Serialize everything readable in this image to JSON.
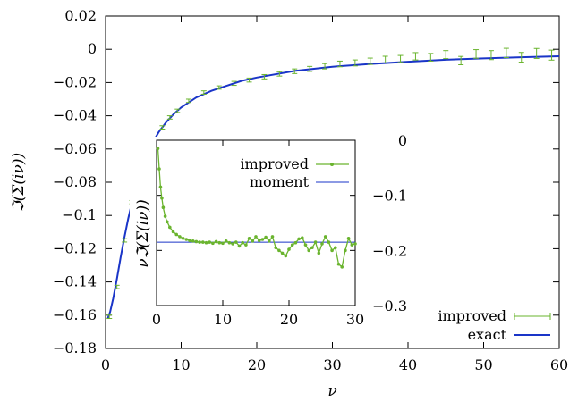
{
  "colors": {
    "improved": "#6ab42e",
    "exact": "#1a35c8",
    "axis": "#000000"
  },
  "chart_data": [
    {
      "type": "line",
      "title": "",
      "xlabel": "ν",
      "ylabel": "ℑ(Σ(iν))",
      "xlim": [
        0,
        60
      ],
      "ylim": [
        -0.18,
        0.02
      ],
      "xticks": [
        0,
        10,
        20,
        30,
        40,
        50,
        60
      ],
      "xtick_labels": [
        "0",
        "10",
        "20",
        "30",
        "40",
        "50",
        "60"
      ],
      "yticks": [
        0.02,
        0,
        -0.02,
        -0.04,
        -0.06,
        -0.08,
        -0.1,
        -0.12,
        -0.14,
        -0.16,
        -0.18
      ],
      "ytick_labels": [
        "0.02",
        "0",
        "−0.02",
        "−0.04",
        "−0.06",
        "−0.08",
        "−0.1",
        "−0.12",
        "−0.14",
        "−0.16",
        "−0.18"
      ],
      "legend_position": "bottom-right",
      "series": [
        {
          "name": "improved",
          "style": "errorbars",
          "x": [
            0.5,
            1.5,
            2.5,
            3.5,
            4.5,
            5.5,
            6.5,
            7.5,
            8.5,
            9.5,
            11,
            13,
            15,
            17,
            19,
            21,
            23,
            25,
            27,
            29,
            31,
            33,
            35,
            37,
            39,
            41,
            43,
            45,
            47,
            49,
            51,
            53,
            55,
            57,
            59
          ],
          "y": [
            -0.161,
            -0.143,
            -0.115,
            -0.092,
            -0.075,
            -0.063,
            -0.054,
            -0.047,
            -0.041,
            -0.037,
            -0.031,
            -0.026,
            -0.023,
            -0.0205,
            -0.0185,
            -0.0165,
            -0.0148,
            -0.0132,
            -0.0118,
            -0.0102,
            -0.0088,
            -0.0082,
            -0.0072,
            -0.0062,
            -0.0058,
            -0.0042,
            -0.0048,
            -0.0032,
            -0.0068,
            -0.0028,
            -0.0035,
            -0.0022,
            -0.0048,
            -0.0025,
            -0.0035
          ],
          "err": [
            0.001,
            0.001,
            0.001,
            0.001,
            0.001,
            0.001,
            0.001,
            0.001,
            0.001,
            0.001,
            0.001,
            0.001,
            0.001,
            0.0012,
            0.0012,
            0.0013,
            0.0013,
            0.0014,
            0.0015,
            0.0016,
            0.0017,
            0.0018,
            0.0019,
            0.002,
            0.0021,
            0.0022,
            0.0023,
            0.0024,
            0.0025,
            0.0026,
            0.0027,
            0.0028,
            0.0029,
            0.003,
            0.003
          ]
        },
        {
          "name": "exact",
          "style": "line",
          "x": [
            0.3,
            0.6,
            1,
            1.5,
            2,
            2.5,
            3,
            3.5,
            4,
            5,
            6,
            7,
            8,
            9,
            10,
            12,
            14,
            16,
            18,
            20,
            25,
            30,
            35,
            40,
            45,
            50,
            55,
            60
          ],
          "y": [
            -0.162,
            -0.158,
            -0.15,
            -0.138,
            -0.125,
            -0.113,
            -0.102,
            -0.092,
            -0.083,
            -0.068,
            -0.058,
            -0.05,
            -0.044,
            -0.039,
            -0.035,
            -0.029,
            -0.025,
            -0.022,
            -0.019,
            -0.017,
            -0.013,
            -0.0105,
            -0.0088,
            -0.0075,
            -0.0063,
            -0.0055,
            -0.0048,
            -0.0042
          ]
        }
      ]
    },
    {
      "type": "line",
      "title": "",
      "xlabel": "",
      "ylabel": "νℑ(Σ(iν))",
      "xlim": [
        0,
        30
      ],
      "ylim": [
        -0.3,
        0
      ],
      "xticks": [
        0,
        10,
        20,
        30
      ],
      "xtick_labels": [
        "0",
        "10",
        "20",
        "30"
      ],
      "yticks": [
        0,
        -0.1,
        -0.2,
        -0.3
      ],
      "ytick_labels": [
        "0",
        "−0.1",
        "−0.2",
        "−0.3"
      ],
      "legend_position": "top-right",
      "series": [
        {
          "name": "improved",
          "style": "linespoints",
          "x": [
            0.2,
            0.4,
            0.6,
            0.8,
            1.0,
            1.3,
            1.6,
            2.0,
            2.5,
            3.0,
            3.5,
            4.0,
            4.5,
            5,
            5.5,
            6,
            6.5,
            7,
            7.5,
            8,
            8.5,
            9,
            9.5,
            10,
            10.5,
            11,
            11.5,
            12,
            12.5,
            13,
            13.5,
            14,
            14.5,
            15,
            15.5,
            16,
            16.5,
            17,
            17.5,
            18,
            18.5,
            19,
            19.5,
            20,
            20.5,
            21,
            21.5,
            22,
            22.5,
            23,
            23.5,
            24,
            24.5,
            25,
            25.5,
            26,
            26.5,
            27,
            27.5,
            28,
            28.5,
            29,
            29.5,
            30
          ],
          "y": [
            -0.015,
            -0.052,
            -0.085,
            -0.105,
            -0.122,
            -0.138,
            -0.148,
            -0.158,
            -0.166,
            -0.171,
            -0.175,
            -0.178,
            -0.18,
            -0.182,
            -0.183,
            -0.184,
            -0.185,
            -0.185,
            -0.186,
            -0.185,
            -0.187,
            -0.184,
            -0.186,
            -0.187,
            -0.183,
            -0.186,
            -0.188,
            -0.185,
            -0.192,
            -0.186,
            -0.19,
            -0.178,
            -0.183,
            -0.175,
            -0.182,
            -0.18,
            -0.176,
            -0.183,
            -0.175,
            -0.195,
            -0.2,
            -0.205,
            -0.21,
            -0.198,
            -0.19,
            -0.186,
            -0.179,
            -0.177,
            -0.19,
            -0.2,
            -0.195,
            -0.185,
            -0.205,
            -0.188,
            -0.175,
            -0.185,
            -0.2,
            -0.195,
            -0.225,
            -0.23,
            -0.2,
            -0.178,
            -0.19,
            -0.188
          ]
        },
        {
          "name": "moment",
          "style": "line",
          "x": [
            0,
            30
          ],
          "y": [
            -0.185,
            -0.185
          ]
        }
      ]
    }
  ]
}
